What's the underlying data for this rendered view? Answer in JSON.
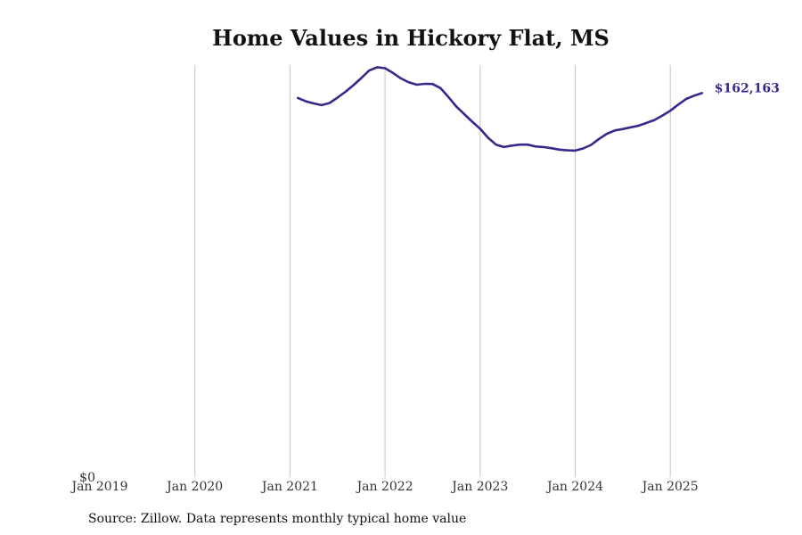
{
  "chart_data": {
    "type": "line",
    "title": "Home Values in Hickory Flat, MS",
    "xlabel": "",
    "ylabel": "",
    "xlim": [
      "2019-01",
      "2025-06"
    ],
    "ylim": [
      0,
      174000
    ],
    "y_tick_labels": [
      {
        "value": 0,
        "label": "$0"
      }
    ],
    "x_tick_labels": [
      "Jan 2019",
      "Jan 2020",
      "Jan 2021",
      "Jan 2022",
      "Jan 2023",
      "Jan 2024",
      "Jan 2025"
    ],
    "grid": "vertical",
    "end_label": "$162,163",
    "line_color": "#352a8c",
    "series": [
      {
        "x": [
          "2021-02",
          "2021-03",
          "2021-04",
          "2021-05",
          "2021-06",
          "2021-07",
          "2021-08",
          "2021-09",
          "2021-10",
          "2021-11",
          "2021-12",
          "2022-01",
          "2022-02",
          "2022-03",
          "2022-04",
          "2022-05",
          "2022-06",
          "2022-07",
          "2022-08",
          "2022-09",
          "2022-10",
          "2022-11",
          "2022-12",
          "2023-01",
          "2023-02",
          "2023-03",
          "2023-04",
          "2023-05",
          "2023-06",
          "2023-07",
          "2023-08",
          "2023-09",
          "2023-10",
          "2023-11",
          "2023-12",
          "2024-01",
          "2024-02",
          "2024-03",
          "2024-04",
          "2024-05",
          "2024-06",
          "2024-07",
          "2024-08",
          "2024-09",
          "2024-10",
          "2024-11",
          "2024-12",
          "2025-01",
          "2025-02",
          "2025-03",
          "2025-04",
          "2025-05"
        ],
        "y": [
          160100,
          158700,
          157800,
          157100,
          158000,
          160300,
          162700,
          165500,
          168500,
          171700,
          173100,
          172700,
          170700,
          168400,
          166700,
          165700,
          166100,
          166000,
          164300,
          160500,
          156500,
          153300,
          150100,
          147100,
          143300,
          140400,
          139400,
          140000,
          140400,
          140400,
          139600,
          139400,
          138900,
          138300,
          138000,
          137900,
          138800,
          140300,
          142800,
          145000,
          146400,
          147000,
          147700,
          148400,
          149600,
          150800,
          152700,
          154700,
          157300,
          159700,
          161100,
          162163
        ]
      }
    ]
  },
  "source": "Source: Zillow. Data represents monthly typical home value"
}
